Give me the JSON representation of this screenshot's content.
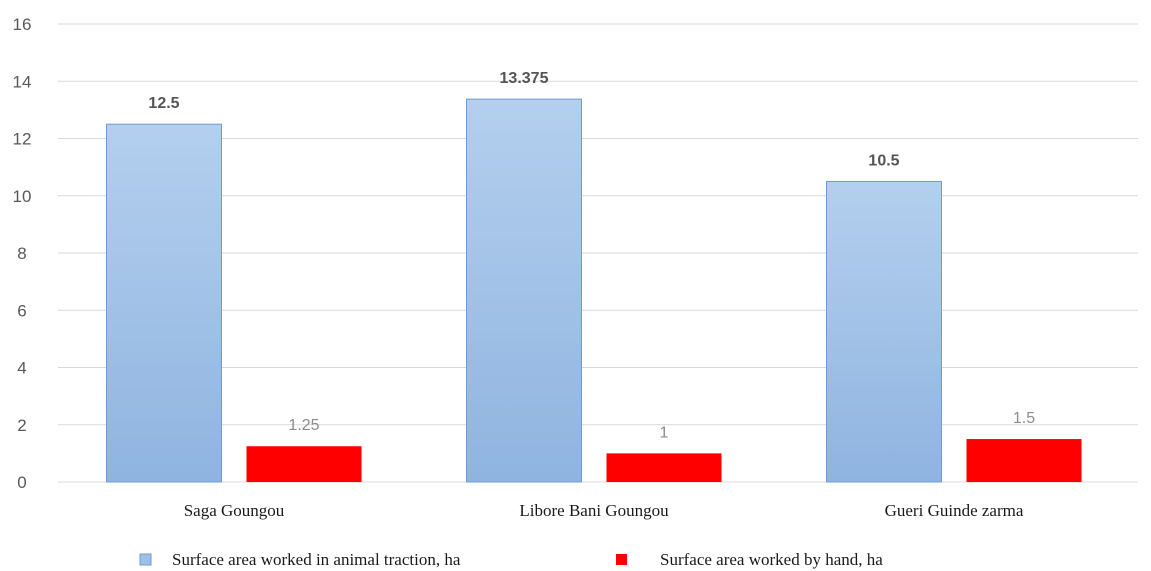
{
  "colors": {
    "series_1": "#9dc0e6",
    "series_1_edge": "#6f9bd1",
    "series_2": "#ff0000",
    "grid": "#d9d9d9"
  },
  "chart_data": {
    "type": "bar",
    "title": "",
    "xlabel": "",
    "ylabel": "",
    "ylim": [
      0,
      16
    ],
    "yticks": [
      "0",
      "2",
      "4",
      "6",
      "8",
      "10",
      "12",
      "14",
      "16"
    ],
    "categories": [
      "Saga Goungou",
      "Libore Bani Goungou",
      "Gueri Guinde zarma"
    ],
    "series": [
      {
        "name": "Surface area worked in animal traction, ha",
        "values": [
          12.5,
          13.375,
          10.5
        ],
        "labels": [
          "12.5",
          "13.375",
          "10.5"
        ]
      },
      {
        "name": "Surface area worked by hand, ha",
        "values": [
          1.25,
          1,
          1.5
        ],
        "labels": [
          "1.25",
          "1",
          "1.5"
        ]
      }
    ],
    "grid": true,
    "legend_position": "bottom"
  }
}
